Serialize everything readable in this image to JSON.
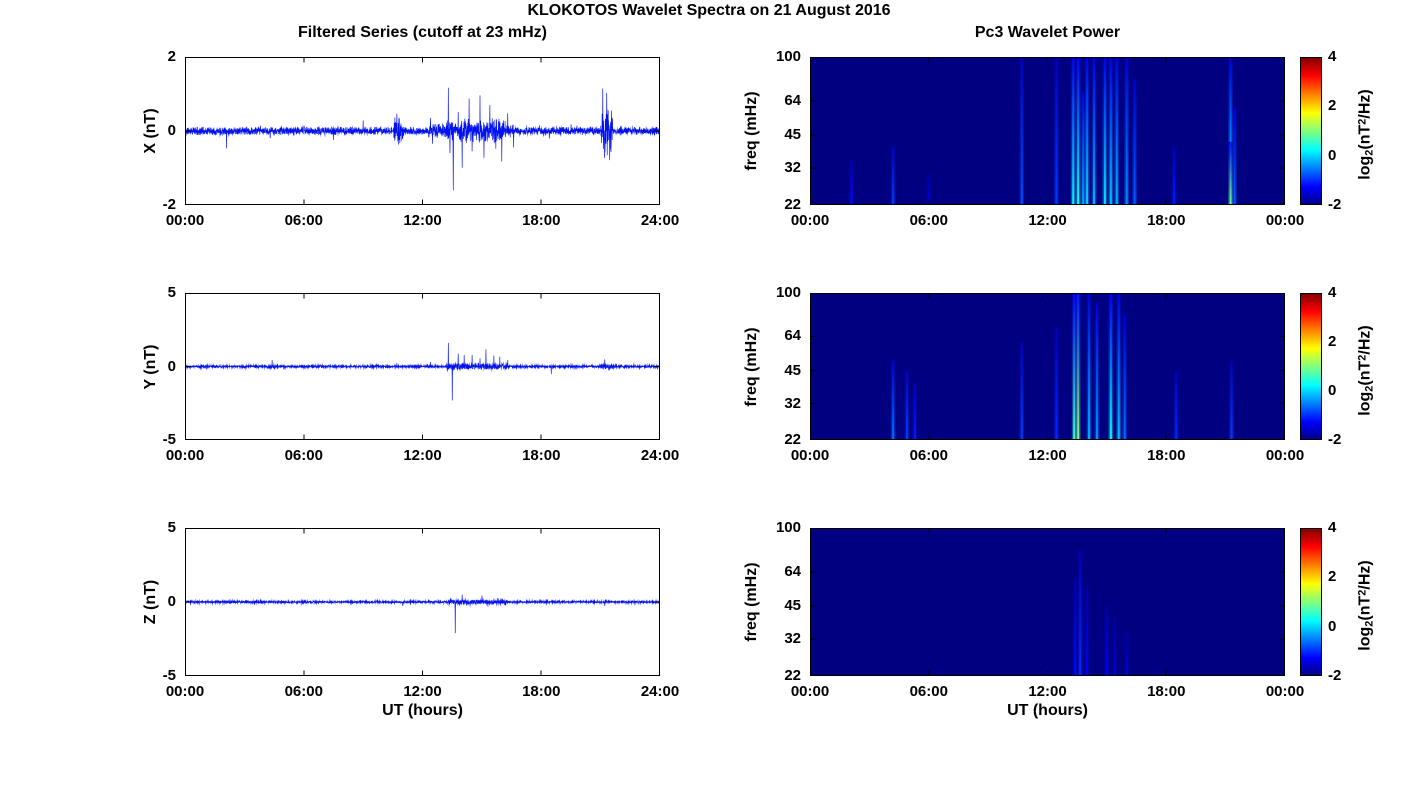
{
  "figure": {
    "title": "KLOKOTOS Wavelet Spectra on 21 August 2016",
    "left_column_title": "Filtered Series (cutoff at 23 mHz)",
    "right_column_title": "Pc3 Wavelet Power",
    "x_axis_label": "UT (hours)",
    "colorbar_label": {
      "prefix": "log",
      "sub": "2",
      "mid": "(nT",
      "sup": "2",
      "suffix": "/Hz)"
    },
    "line_color": "#0010ee",
    "background_color": "#ffffff"
  },
  "chart_data": [
    {
      "id": "x-filtered-series",
      "type": "line",
      "ylabel": "X (nT)",
      "xlim_hours": [
        0,
        24
      ],
      "ylim": [
        -2,
        2
      ],
      "xticks": [
        "00:00",
        "06:00",
        "12:00",
        "18:00",
        "24:00"
      ],
      "yticks": [
        "2",
        "0",
        "-2"
      ],
      "ytick_values": [
        2,
        0,
        -2
      ],
      "noise": {
        "baseline": 0.065,
        "bursts": [
          [
            10.55,
            11.05,
            0.18
          ],
          [
            12.3,
            16.6,
            0.05
          ],
          [
            13.2,
            16.2,
            0.07
          ],
          [
            21.0,
            21.6,
            0.3
          ]
        ]
      },
      "spikes": [
        [
          2.1,
          -0.45
        ],
        [
          4.3,
          -0.2
        ],
        [
          6.0,
          0.15
        ],
        [
          7.5,
          -0.15
        ],
        [
          9.0,
          0.2
        ],
        [
          10.7,
          0.35
        ],
        [
          10.85,
          -0.3
        ],
        [
          12.4,
          0.4
        ],
        [
          12.5,
          -0.3
        ],
        [
          13.3,
          1.3
        ],
        [
          13.38,
          -0.5
        ],
        [
          13.55,
          -1.9
        ],
        [
          13.8,
          0.6
        ],
        [
          14.0,
          -1.05
        ],
        [
          14.35,
          0.75
        ],
        [
          14.5,
          -0.6
        ],
        [
          14.9,
          0.95
        ],
        [
          15.1,
          -0.7
        ],
        [
          15.4,
          0.85
        ],
        [
          15.7,
          -0.5
        ],
        [
          16.0,
          -0.95
        ],
        [
          16.3,
          0.5
        ],
        [
          16.6,
          -0.4
        ],
        [
          17.9,
          0.25
        ],
        [
          18.4,
          -0.3
        ],
        [
          19.5,
          0.2
        ],
        [
          21.1,
          0.6
        ],
        [
          21.2,
          -0.65
        ],
        [
          21.3,
          0.55
        ],
        [
          21.45,
          -0.5
        ],
        [
          22.0,
          0.2
        ]
      ],
      "seed": 11
    },
    {
      "id": "x-wavelet-power",
      "type": "heatmap",
      "ylabel": "freq (mHz)",
      "yscale": "log",
      "ylim_mhz": [
        22,
        100
      ],
      "xlim_hours": [
        0,
        24
      ],
      "xticks": [
        "00:00",
        "06:00",
        "12:00",
        "18:00",
        "00:00"
      ],
      "yticks": [
        "100",
        "64",
        "45",
        "32",
        "22"
      ],
      "ytick_values": [
        100,
        64,
        45,
        32,
        22
      ],
      "colormap": "jet",
      "clim": [
        -2,
        4
      ],
      "background_value": -2,
      "colorbar_ticks": [
        "4",
        "2",
        "0",
        "-2"
      ],
      "colorbar_tick_values": [
        4,
        2,
        0,
        -2
      ],
      "streaks": [
        [
          2.1,
          22,
          35,
          -1.2
        ],
        [
          4.2,
          22,
          40,
          -0.9
        ],
        [
          6.0,
          22,
          30,
          -1.4
        ],
        [
          10.7,
          22,
          100,
          -0.8
        ],
        [
          12.45,
          22,
          100,
          -0.9
        ],
        [
          13.3,
          22,
          100,
          0.2
        ],
        [
          13.55,
          22,
          100,
          0.4
        ],
        [
          13.8,
          22,
          70,
          -0.3
        ],
        [
          14.0,
          22,
          100,
          0.0
        ],
        [
          14.35,
          22,
          100,
          -0.2
        ],
        [
          14.9,
          22,
          100,
          0.1
        ],
        [
          15.2,
          22,
          100,
          -0.1
        ],
        [
          15.5,
          22,
          100,
          -0.2
        ],
        [
          16.0,
          22,
          100,
          -0.4
        ],
        [
          16.4,
          22,
          80,
          -0.7
        ],
        [
          18.4,
          22,
          40,
          -1.1
        ],
        [
          21.25,
          22,
          42,
          0.9
        ],
        [
          21.25,
          42,
          100,
          -0.5
        ],
        [
          21.45,
          22,
          60,
          -0.7
        ]
      ]
    },
    {
      "id": "y-filtered-series",
      "type": "line",
      "ylabel": "Y (nT)",
      "xlim_hours": [
        0,
        24
      ],
      "ylim": [
        -5,
        5
      ],
      "xticks": [
        "00:00",
        "06:00",
        "12:00",
        "18:00",
        "24:00"
      ],
      "yticks": [
        "5",
        "0",
        "-5"
      ],
      "ytick_values": [
        5,
        0,
        -5
      ],
      "noise": {
        "baseline": 0.05,
        "bursts": [
          [
            4.2,
            4.6,
            0.05
          ],
          [
            13.2,
            16.3,
            0.09
          ],
          [
            21.0,
            21.6,
            0.07
          ]
        ]
      },
      "spikes": [
        [
          4.4,
          0.35
        ],
        [
          5.0,
          -0.2
        ],
        [
          10.7,
          0.3
        ],
        [
          12.4,
          0.3
        ],
        [
          13.3,
          1.5
        ],
        [
          13.5,
          -2.2
        ],
        [
          13.8,
          0.9
        ],
        [
          14.1,
          1.05
        ],
        [
          14.5,
          0.8
        ],
        [
          14.9,
          0.6
        ],
        [
          15.2,
          1.2
        ],
        [
          15.6,
          0.95
        ],
        [
          15.9,
          0.5
        ],
        [
          16.3,
          0.4
        ],
        [
          18.5,
          -0.55
        ],
        [
          21.2,
          0.35
        ],
        [
          21.4,
          -0.3
        ]
      ],
      "seed": 22
    },
    {
      "id": "y-wavelet-power",
      "type": "heatmap",
      "ylabel": "freq (mHz)",
      "yscale": "log",
      "ylim_mhz": [
        22,
        100
      ],
      "xlim_hours": [
        0,
        24
      ],
      "xticks": [
        "00:00",
        "06:00",
        "12:00",
        "18:00",
        "00:00"
      ],
      "yticks": [
        "100",
        "64",
        "45",
        "32",
        "22"
      ],
      "ytick_values": [
        100,
        64,
        45,
        32,
        22
      ],
      "colormap": "jet",
      "clim": [
        -2,
        4
      ],
      "background_value": -2,
      "colorbar_ticks": [
        "4",
        "2",
        "0",
        "-2"
      ],
      "colorbar_tick_values": [
        4,
        2,
        0,
        -2
      ],
      "streaks": [
        [
          4.2,
          22,
          50,
          -0.6
        ],
        [
          4.9,
          22,
          45,
          -0.9
        ],
        [
          5.3,
          22,
          40,
          -1.1
        ],
        [
          10.7,
          22,
          60,
          -0.9
        ],
        [
          12.45,
          22,
          70,
          -1.0
        ],
        [
          13.35,
          22,
          100,
          0.6
        ],
        [
          13.55,
          22,
          100,
          1.0
        ],
        [
          14.1,
          22,
          100,
          -0.2
        ],
        [
          14.5,
          22,
          90,
          -0.4
        ],
        [
          15.2,
          22,
          100,
          0.3
        ],
        [
          15.6,
          22,
          100,
          -0.1
        ],
        [
          15.9,
          22,
          80,
          -0.6
        ],
        [
          18.5,
          22,
          45,
          -1.0
        ],
        [
          21.3,
          22,
          50,
          -0.9
        ]
      ]
    },
    {
      "id": "z-filtered-series",
      "type": "line",
      "ylabel": "Z (nT)",
      "xlim_hours": [
        0,
        24
      ],
      "ylim": [
        -5,
        5
      ],
      "xticks": [
        "00:00",
        "06:00",
        "12:00",
        "18:00",
        "24:00"
      ],
      "yticks": [
        "5",
        "0",
        "-5"
      ],
      "ytick_values": [
        5,
        0,
        -5
      ],
      "noise": {
        "baseline": 0.045,
        "bursts": [
          [
            13.3,
            16.3,
            0.05
          ]
        ]
      },
      "spikes": [
        [
          11.0,
          -0.2
        ],
        [
          13.4,
          0.3
        ],
        [
          13.65,
          -2.1
        ],
        [
          14.0,
          0.55
        ],
        [
          14.4,
          -0.35
        ],
        [
          15.0,
          0.45
        ],
        [
          15.3,
          -0.4
        ],
        [
          15.8,
          0.3
        ],
        [
          16.2,
          -0.25
        ],
        [
          18.3,
          0.2
        ],
        [
          21.2,
          -0.2
        ]
      ],
      "seed": 33
    },
    {
      "id": "z-wavelet-power",
      "type": "heatmap",
      "ylabel": "freq (mHz)",
      "yscale": "log",
      "ylim_mhz": [
        22,
        100
      ],
      "xlim_hours": [
        0,
        24
      ],
      "xticks": [
        "00:00",
        "06:00",
        "12:00",
        "18:00",
        "00:00"
      ],
      "yticks": [
        "100",
        "64",
        "45",
        "32",
        "22"
      ],
      "ytick_values": [
        100,
        64,
        45,
        32,
        22
      ],
      "colormap": "jet",
      "clim": [
        -2,
        4
      ],
      "background_value": -2,
      "colorbar_ticks": [
        "4",
        "2",
        "0",
        "-2"
      ],
      "colorbar_tick_values": [
        4,
        2,
        0,
        -2
      ],
      "streaks": [
        [
          13.4,
          22,
          60,
          -1.2
        ],
        [
          13.65,
          22,
          80,
          -1.0
        ],
        [
          14.0,
          22,
          55,
          -1.3
        ],
        [
          15.0,
          22,
          45,
          -1.3
        ],
        [
          15.4,
          22,
          40,
          -1.5
        ],
        [
          16.0,
          22,
          35,
          -1.5
        ]
      ]
    }
  ]
}
